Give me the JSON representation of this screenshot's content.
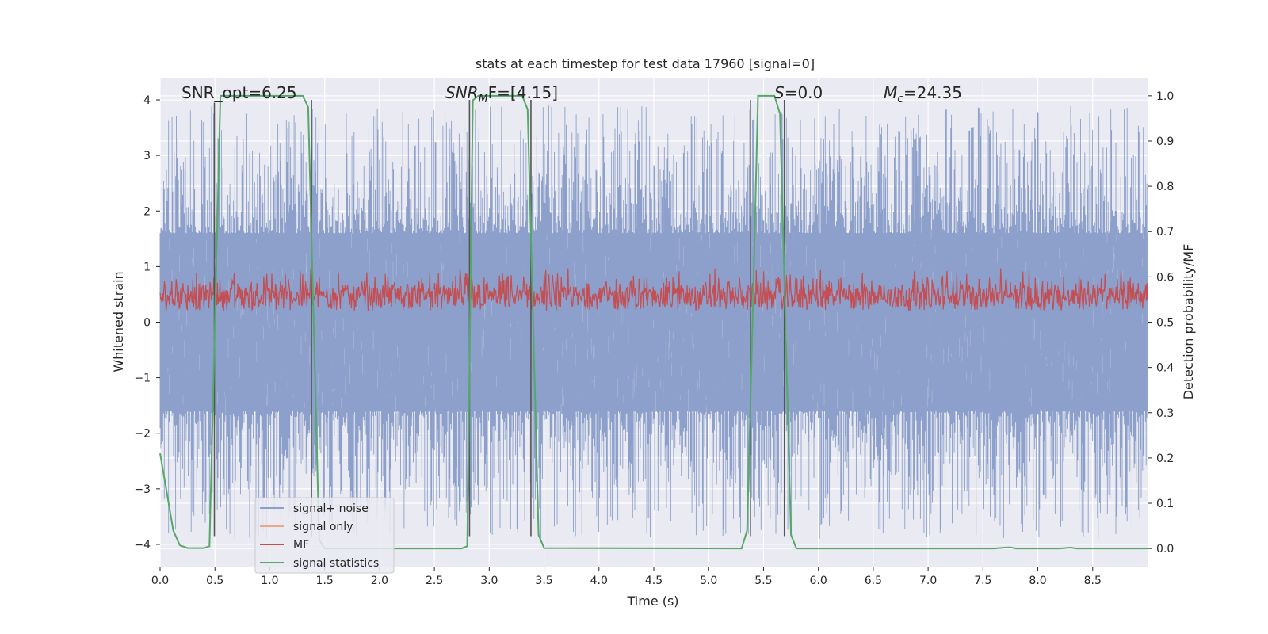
{
  "chart_data": {
    "type": "line",
    "title": "stats at each timestep for test data 17960 [signal=0]",
    "xlabel": "Time (s)",
    "ylabel_left": "Whitened strain",
    "ylabel_right": "Detection probability/MF",
    "xlim": [
      0.0,
      9.0
    ],
    "ylim_left": [
      -4.4,
      4.4
    ],
    "ylim_right": [
      -0.04,
      1.04
    ],
    "x_ticks": [
      0.0,
      0.5,
      1.0,
      1.5,
      2.0,
      2.5,
      3.0,
      3.5,
      4.0,
      4.5,
      5.0,
      5.5,
      6.0,
      6.5,
      7.0,
      7.5,
      8.0,
      8.5
    ],
    "x_tick_labels": [
      "0.0",
      "0.5",
      "1.0",
      "1.5",
      "2.0",
      "2.5",
      "3.0",
      "3.5",
      "4.0",
      "4.5",
      "5.0",
      "5.5",
      "6.0",
      "6.5",
      "7.0",
      "7.5",
      "8.0",
      "8.5"
    ],
    "y_left_ticks": [
      -4,
      -3,
      -2,
      -1,
      0,
      1,
      2,
      3,
      4
    ],
    "y_left_tick_labels": [
      "−4",
      "−3",
      "−2",
      "−1",
      "0",
      "1",
      "2",
      "3",
      "4"
    ],
    "y_right_ticks": [
      0.0,
      0.1,
      0.2,
      0.3,
      0.4,
      0.5,
      0.6,
      0.7,
      0.8,
      0.9,
      1.0
    ],
    "y_right_tick_labels": [
      "0.0",
      "0.1",
      "0.2",
      "0.3",
      "0.4",
      "0.5",
      "0.6",
      "0.7",
      "0.8",
      "0.9",
      "1.0"
    ],
    "grid": true,
    "background": "#eaeaf2",
    "legend_position": "lower-left",
    "annotations": {
      "snr_opt": "SNR_opt=6.25",
      "snr_mf_symbol": "SNR",
      "snr_mf_sub": "M",
      "snr_mf_rest": "F=[4.15]",
      "s_symbol": "S",
      "s_rest": "=0.0",
      "mc_symbol": "M",
      "mc_sub": "c",
      "mc_rest": "=24.35"
    },
    "series": [
      {
        "name": "signal+ noise",
        "axis": "left",
        "color": "#8da0cb",
        "description_envelope": "noise spans approx −3.8 to 3.9 over full range",
        "envelope": {
          "median_abs": 1.6,
          "max": 3.9,
          "min": -3.9
        }
      },
      {
        "name": "signal only",
        "axis": "left",
        "color": "#e8a889",
        "values_constant": 0
      },
      {
        "name": "MF",
        "axis": "right",
        "color": "#c44e52",
        "range": [
          0.51,
          0.62
        ]
      },
      {
        "name": "signal statistics",
        "axis": "right",
        "color": "#55a868",
        "x": [
          0.0,
          0.05,
          0.12,
          0.18,
          0.25,
          0.4,
          0.45,
          0.5,
          0.55,
          0.6,
          1.3,
          1.35,
          1.4,
          1.45,
          1.5,
          2.75,
          2.8,
          2.85,
          2.9,
          3.3,
          3.35,
          3.4,
          3.45,
          3.5,
          5.3,
          5.35,
          5.4,
          5.45,
          5.6,
          5.65,
          5.7,
          5.75,
          5.8,
          7.6,
          7.7,
          7.75,
          7.8,
          8.2,
          8.3,
          8.35,
          9.0
        ],
        "y": [
          0.21,
          0.14,
          0.04,
          0.007,
          0.001,
          0.001,
          0.005,
          0.5,
          1.0,
          1.0,
          1.0,
          0.975,
          0.5,
          0.02,
          0.0,
          0.0,
          0.005,
          0.99,
          1.0,
          1.0,
          0.97,
          0.5,
          0.03,
          0.001,
          0.0,
          0.04,
          0.5,
          1.0,
          1.0,
          0.96,
          0.5,
          0.03,
          0.0,
          0.0,
          0.002,
          0.0025,
          0.0,
          0.0,
          0.002,
          0.0,
          0.0
        ]
      }
    ],
    "event_markers": [
      {
        "x": 0.495,
        "y_from": -3.85,
        "y_to": 3.95
      },
      {
        "x": 1.38,
        "y_from": -3.85,
        "y_to": 4.0
      },
      {
        "x": 2.82,
        "y_from": -3.85,
        "y_to": 4.0
      },
      {
        "x": 3.38,
        "y_from": -3.85,
        "y_to": 4.0
      },
      {
        "x": 5.38,
        "y_from": -3.85,
        "y_to": 4.0
      },
      {
        "x": 5.69,
        "y_from": -3.85,
        "y_to": 4.0
      }
    ]
  }
}
